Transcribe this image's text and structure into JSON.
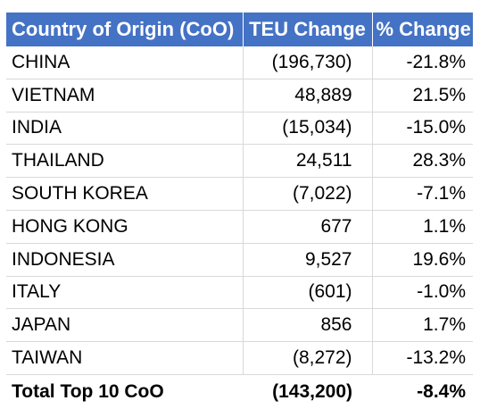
{
  "chart_data": {
    "type": "table",
    "columns": [
      "Country of Origin (CoO)",
      "TEU Change",
      "% Change"
    ],
    "rows": [
      {
        "country": "CHINA",
        "teu": "(196,730)",
        "pct": "-21.8%"
      },
      {
        "country": "VIETNAM",
        "teu": "48,889",
        "pct": "21.5%"
      },
      {
        "country": "INDIA",
        "teu": "(15,034)",
        "pct": "-15.0%"
      },
      {
        "country": "THAILAND",
        "teu": "24,511",
        "pct": "28.3%"
      },
      {
        "country": "SOUTH KOREA",
        "teu": "(7,022)",
        "pct": "-7.1%"
      },
      {
        "country": "HONG KONG",
        "teu": "677",
        "pct": "1.1%"
      },
      {
        "country": "INDONESIA",
        "teu": "9,527",
        "pct": "19.6%"
      },
      {
        "country": "ITALY",
        "teu": "(601)",
        "pct": "-1.0%"
      },
      {
        "country": "JAPAN",
        "teu": "856",
        "pct": "1.7%"
      },
      {
        "country": "TAIWAN",
        "teu": "(8,272)",
        "pct": "-13.2%"
      }
    ],
    "total": {
      "country": "Total Top 10 CoO",
      "teu": "(143,200)",
      "pct": "-8.4%"
    }
  },
  "colors": {
    "header_background": "#4472c4",
    "header_text": "#ffffff",
    "grid_line": "#d9d9d9",
    "total_rule": "#000000"
  }
}
